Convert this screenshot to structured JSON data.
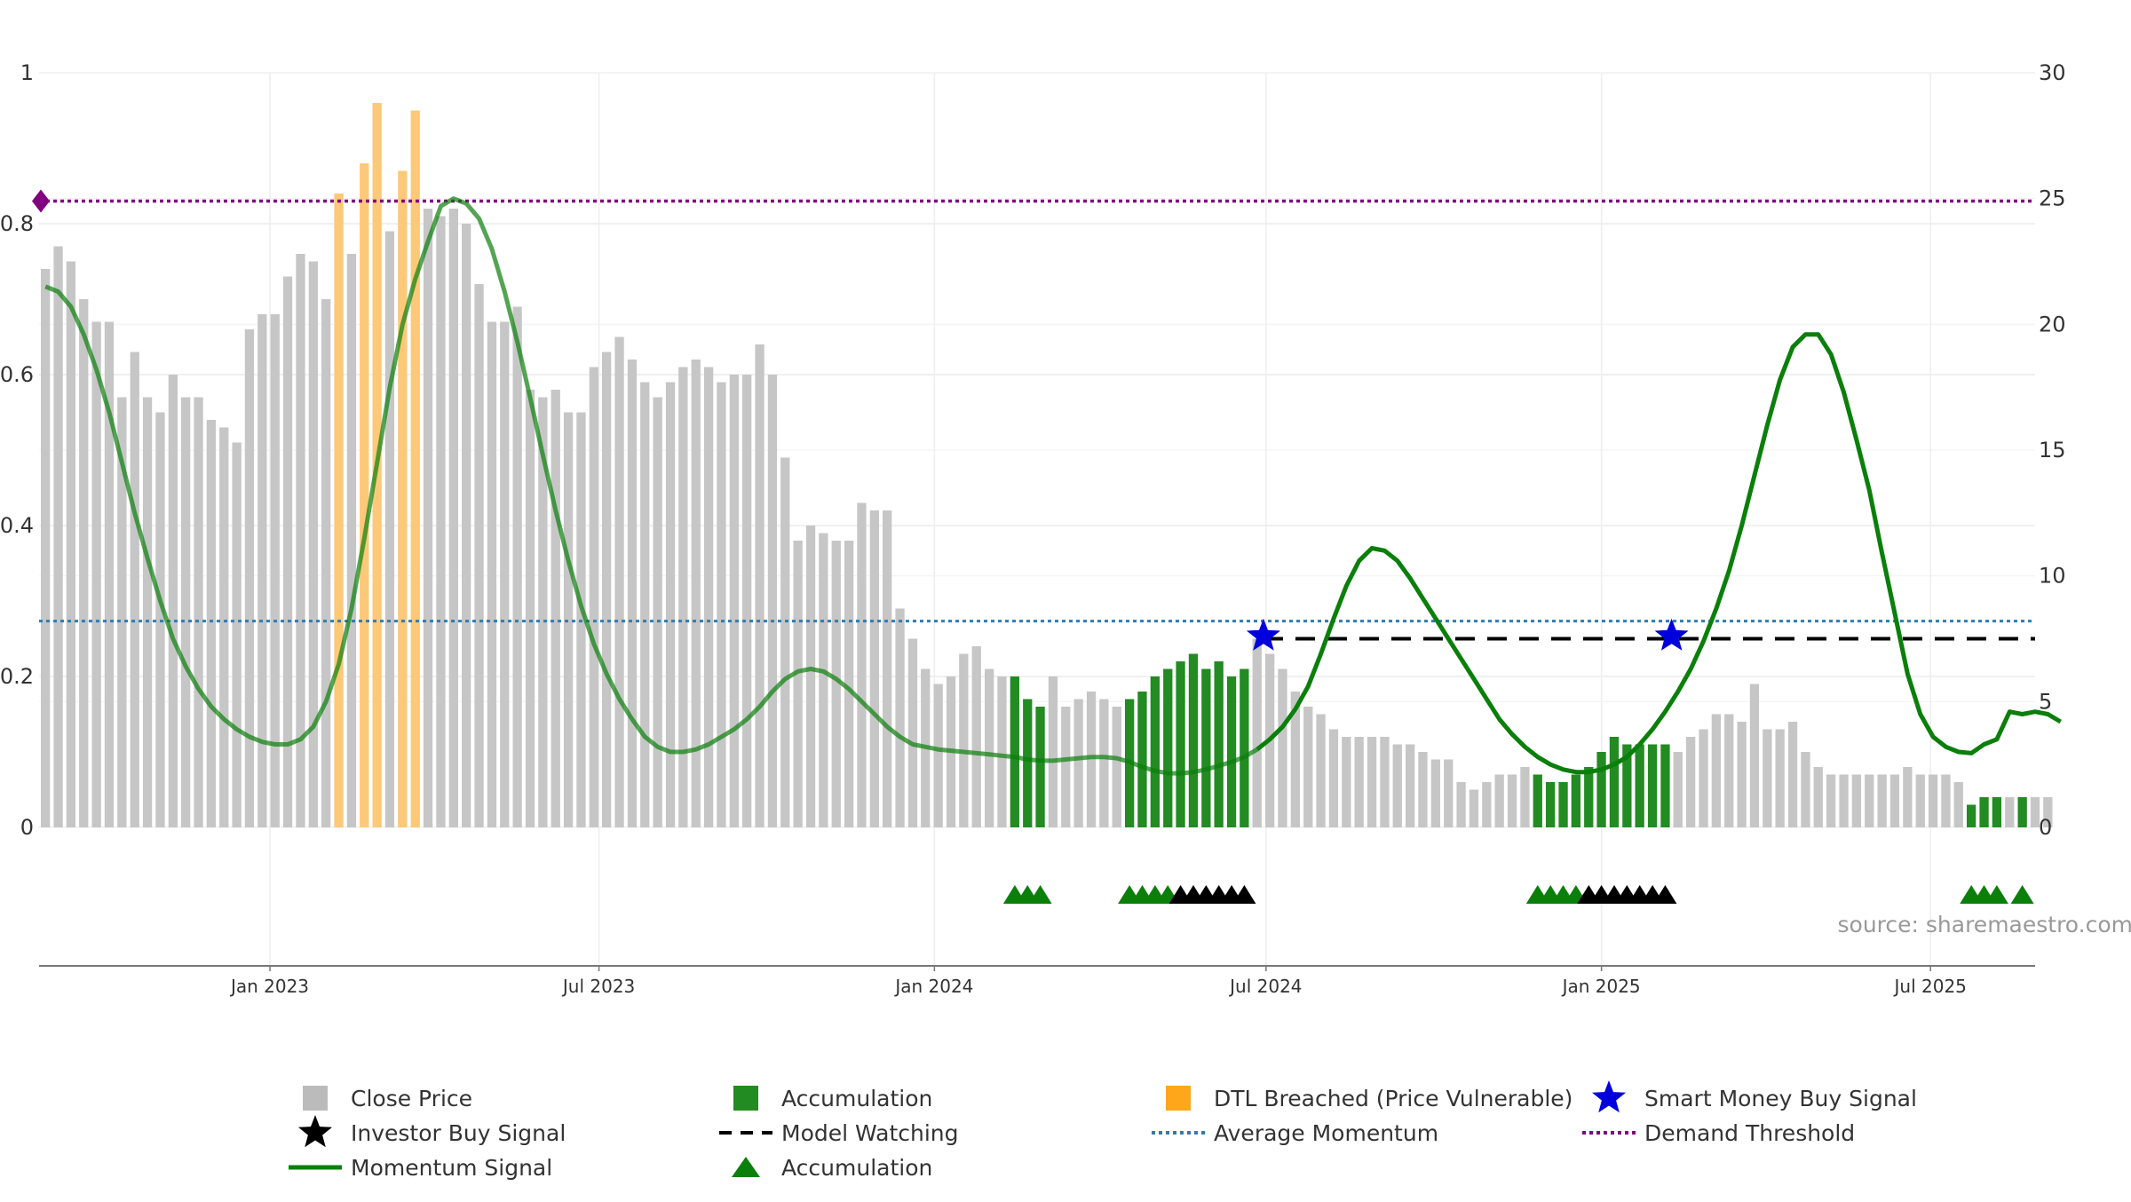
{
  "chart_data": {
    "type": "bar",
    "left_axis": {
      "ticks": [
        "0",
        "0.2",
        "0.4",
        "0.6",
        "0.8",
        "1"
      ],
      "ylim": [
        0,
        1
      ]
    },
    "right_axis": {
      "ticks": [
        "0",
        "5",
        "10",
        "15",
        "20",
        "25",
        "30"
      ],
      "ylim": [
        0,
        30
      ]
    },
    "x_axis": {
      "ticks": [
        {
          "label": "Jan 2023",
          "week": 17.6
        },
        {
          "label": "Jul 2023",
          "week": 43.4
        },
        {
          "label": "Jan 2024",
          "week": 69.7
        },
        {
          "label": "Jul 2024",
          "week": 95.7
        },
        {
          "label": "Jan 2025",
          "week": 122
        },
        {
          "label": "Jul 2025",
          "week": 147.8
        }
      ],
      "xlim": [
        0,
        156.5
      ]
    },
    "bar_colors": {
      "close": "#c6c6c6",
      "accumulation": "#228b22",
      "dtl": "#fcc978"
    },
    "bars": [
      0.74,
      0.77,
      0.75,
      0.7,
      0.67,
      0.67,
      0.57,
      0.63,
      0.57,
      0.55,
      0.6,
      0.57,
      0.57,
      0.54,
      0.53,
      0.51,
      0.66,
      0.68,
      0.68,
      0.73,
      0.76,
      0.75,
      0.7,
      0.84,
      0.76,
      0.88,
      0.96,
      0.79,
      0.87,
      0.95,
      0.82,
      0.81,
      0.82,
      0.8,
      0.72,
      0.67,
      0.67,
      0.69,
      0.58,
      0.57,
      0.58,
      0.55,
      0.55,
      0.61,
      0.63,
      0.65,
      0.62,
      0.59,
      0.57,
      0.59,
      0.61,
      0.62,
      0.61,
      0.59,
      0.6,
      0.6,
      0.64,
      0.6,
      0.49,
      0.38,
      0.4,
      0.39,
      0.38,
      0.38,
      0.43,
      0.42,
      0.42,
      0.29,
      0.25,
      0.21,
      0.19,
      0.2,
      0.23,
      0.24,
      0.21,
      0.2,
      0.2,
      0.17,
      0.16,
      0.2,
      0.16,
      0.17,
      0.18,
      0.17,
      0.16,
      0.17,
      0.18,
      0.2,
      0.21,
      0.22,
      0.23,
      0.21,
      0.22,
      0.2,
      0.21,
      0.25,
      0.23,
      0.21,
      0.18,
      0.16,
      0.15,
      0.13,
      0.12,
      0.12,
      0.12,
      0.12,
      0.11,
      0.11,
      0.1,
      0.09,
      0.09,
      0.06,
      0.05,
      0.06,
      0.07,
      0.07,
      0.08,
      0.07,
      0.06,
      0.06,
      0.07,
      0.08,
      0.1,
      0.12,
      0.11,
      0.11,
      0.11,
      0.11,
      0.1,
      0.12,
      0.13,
      0.15,
      0.15,
      0.14,
      0.19,
      0.13,
      0.13,
      0.14,
      0.1,
      0.08,
      0.07,
      0.07,
      0.07,
      0.07,
      0.07,
      0.07,
      0.08,
      0.07,
      0.07,
      0.07,
      0.06,
      0.03,
      0.04,
      0.04,
      0.04,
      0.04,
      0.04,
      0.04
    ],
    "accumulation_weeks": [
      76,
      77,
      78,
      85,
      86,
      87,
      88,
      89,
      90,
      91,
      92,
      93,
      94,
      117,
      118,
      119,
      120,
      121,
      122,
      123,
      124,
      125,
      126,
      127,
      151,
      152,
      153,
      155
    ],
    "dtl_weeks": [
      23,
      25,
      26,
      28,
      29
    ],
    "momentum_signal": {
      "color": "#0a7f0a",
      "points": [
        [
          0,
          21.5
        ],
        [
          1,
          21.3
        ],
        [
          2,
          20.7
        ],
        [
          3,
          19.6
        ],
        [
          4,
          18.2
        ],
        [
          5,
          16.5
        ],
        [
          6,
          14.5
        ],
        [
          7,
          12.5
        ],
        [
          8,
          10.7
        ],
        [
          9,
          9.0
        ],
        [
          10,
          7.5
        ],
        [
          11,
          6.4
        ],
        [
          12,
          5.5
        ],
        [
          13,
          4.8
        ],
        [
          14,
          4.3
        ],
        [
          15,
          3.9
        ],
        [
          16,
          3.6
        ],
        [
          17,
          3.4
        ],
        [
          18,
          3.3
        ],
        [
          19,
          3.3
        ],
        [
          20,
          3.5
        ],
        [
          21,
          4.0
        ],
        [
          22,
          5.0
        ],
        [
          23,
          6.5
        ],
        [
          24,
          8.7
        ],
        [
          25,
          11.5
        ],
        [
          26,
          14.5
        ],
        [
          27,
          17.5
        ],
        [
          28,
          20.0
        ],
        [
          29,
          21.8
        ],
        [
          30,
          23.3
        ],
        [
          31,
          24.7
        ],
        [
          32,
          25.0
        ],
        [
          33,
          24.8
        ],
        [
          34,
          24.2
        ],
        [
          35,
          23.0
        ],
        [
          36,
          21.3
        ],
        [
          37,
          19.3
        ],
        [
          38,
          17.1
        ],
        [
          39,
          14.8
        ],
        [
          40,
          12.6
        ],
        [
          41,
          10.6
        ],
        [
          42,
          8.8
        ],
        [
          43,
          7.3
        ],
        [
          44,
          6.1
        ],
        [
          45,
          5.1
        ],
        [
          46,
          4.3
        ],
        [
          47,
          3.6
        ],
        [
          48,
          3.2
        ],
        [
          49,
          3.0
        ],
        [
          50,
          3.0
        ],
        [
          51,
          3.1
        ],
        [
          52,
          3.3
        ],
        [
          53,
          3.6
        ],
        [
          54,
          3.9
        ],
        [
          55,
          4.3
        ],
        [
          56,
          4.8
        ],
        [
          57,
          5.4
        ],
        [
          58,
          5.9
        ],
        [
          59,
          6.2
        ],
        [
          60,
          6.3
        ],
        [
          61,
          6.2
        ],
        [
          62,
          5.9
        ],
        [
          63,
          5.5
        ],
        [
          64,
          5.0
        ],
        [
          65,
          4.5
        ],
        [
          66,
          4.0
        ],
        [
          67,
          3.6
        ],
        [
          68,
          3.3
        ],
        [
          69,
          3.2
        ],
        [
          70,
          3.1
        ],
        [
          71,
          3.05
        ],
        [
          72,
          3.0
        ],
        [
          73,
          2.95
        ],
        [
          74,
          2.9
        ],
        [
          75,
          2.85
        ],
        [
          76,
          2.8
        ],
        [
          77,
          2.7
        ],
        [
          78,
          2.65
        ],
        [
          79,
          2.65
        ],
        [
          80,
          2.7
        ],
        [
          81,
          2.75
        ],
        [
          82,
          2.8
        ],
        [
          83,
          2.8
        ],
        [
          84,
          2.75
        ],
        [
          85,
          2.6
        ],
        [
          86,
          2.4
        ],
        [
          87,
          2.25
        ],
        [
          88,
          2.15
        ],
        [
          89,
          2.15
        ],
        [
          90,
          2.2
        ],
        [
          91,
          2.3
        ],
        [
          92,
          2.45
        ],
        [
          93,
          2.6
        ],
        [
          94,
          2.8
        ],
        [
          95,
          3.1
        ],
        [
          96,
          3.5
        ],
        [
          97,
          4.0
        ],
        [
          98,
          4.7
        ],
        [
          99,
          5.6
        ],
        [
          100,
          6.9
        ],
        [
          101,
          8.3
        ],
        [
          102,
          9.6
        ],
        [
          103,
          10.6
        ],
        [
          104,
          11.1
        ],
        [
          105,
          11.0
        ],
        [
          106,
          10.6
        ],
        [
          107,
          9.9
        ],
        [
          108,
          9.1
        ],
        [
          109,
          8.3
        ],
        [
          110,
          7.5
        ],
        [
          111,
          6.7
        ],
        [
          112,
          5.9
        ],
        [
          113,
          5.1
        ],
        [
          114,
          4.3
        ],
        [
          115,
          3.7
        ],
        [
          116,
          3.2
        ],
        [
          117,
          2.8
        ],
        [
          118,
          2.5
        ],
        [
          119,
          2.3
        ],
        [
          120,
          2.2
        ],
        [
          121,
          2.2
        ],
        [
          122,
          2.3
        ],
        [
          123,
          2.5
        ],
        [
          124,
          2.8
        ],
        [
          125,
          3.3
        ],
        [
          126,
          3.9
        ],
        [
          127,
          4.6
        ],
        [
          128,
          5.4
        ],
        [
          129,
          6.3
        ],
        [
          130,
          7.4
        ],
        [
          131,
          8.7
        ],
        [
          132,
          10.2
        ],
        [
          133,
          12.0
        ],
        [
          134,
          14.0
        ],
        [
          135,
          16.0
        ],
        [
          136,
          17.8
        ],
        [
          137,
          19.1
        ],
        [
          138,
          19.6
        ],
        [
          139,
          19.6
        ],
        [
          140,
          18.8
        ],
        [
          141,
          17.3
        ],
        [
          142,
          15.4
        ],
        [
          143,
          13.4
        ],
        [
          144,
          10.9
        ],
        [
          145,
          8.5
        ],
        [
          146,
          6.1
        ],
        [
          147,
          4.5
        ],
        [
          148,
          3.6
        ],
        [
          149,
          3.2
        ],
        [
          150,
          3.0
        ],
        [
          151,
          2.95
        ],
        [
          152,
          3.3
        ],
        [
          153,
          3.5
        ],
        [
          154,
          4.6
        ],
        [
          155,
          4.5
        ],
        [
          156,
          4.6
        ],
        [
          157,
          4.5
        ],
        [
          158,
          4.2
        ]
      ]
    },
    "momentum_faded_weeks": [
      0,
      95.5
    ],
    "average_momentum": {
      "value": 8.2,
      "color": "#2f7cb3"
    },
    "demand_threshold": {
      "value": 24.9,
      "color": "#800080"
    },
    "model_watching": {
      "from_week": 95.5,
      "to_week": 156,
      "value": 7.5,
      "color": "#000000"
    },
    "smart_money_buy_signals": [
      {
        "week": 95.5,
        "value": 7.6
      },
      {
        "week": 127.5,
        "value": 7.6
      }
    ],
    "investor_buy_signal_weeks": [
      89,
      90,
      91,
      92,
      93,
      94,
      121,
      122,
      123,
      124,
      125,
      126,
      127
    ],
    "accumulation_marker_weeks": [
      76,
      77,
      78,
      85,
      86,
      87,
      88,
      117,
      118,
      119,
      120,
      151,
      152,
      153,
      155
    ],
    "legend": [
      {
        "label": "Close Price",
        "symbol": "square",
        "color": "#bbbbbb"
      },
      {
        "label": "Accumulation",
        "symbol": "square",
        "color": "#228b22"
      },
      {
        "label": "DTL Breached (Price Vulnerable)",
        "symbol": "square",
        "color": "#ffa71a"
      },
      {
        "label": "Smart Money Buy Signal",
        "symbol": "star",
        "color": "#0000dd"
      },
      {
        "label": "Investor Buy Signal",
        "symbol": "star",
        "color": "#000000"
      },
      {
        "label": "Model Watching",
        "symbol": "dash",
        "color": "#000000"
      },
      {
        "label": "Average Momentum",
        "symbol": "dot",
        "color": "#2f7cb3"
      },
      {
        "label": "Demand Threshold",
        "symbol": "dot",
        "color": "#800080"
      },
      {
        "label": "Momentum Signal",
        "symbol": "line",
        "color": "#0a7f0a"
      },
      {
        "label": "Accumulation",
        "symbol": "triangle",
        "color": "#0a7f0a"
      }
    ],
    "source": "source: sharemaestro.com"
  }
}
